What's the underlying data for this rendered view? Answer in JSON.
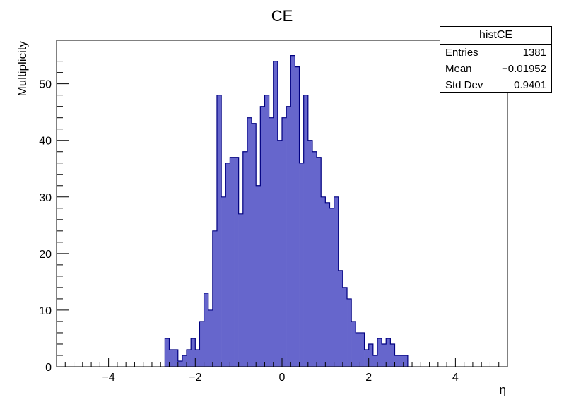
{
  "chart_data": {
    "type": "bar",
    "title": "CE",
    "xlabel": "η",
    "ylabel": "Multiplicity",
    "xlim": [
      -5.2,
      5.2
    ],
    "ylim": [
      0,
      57.7
    ],
    "bin_width": 0.1,
    "bin_low_edges": [
      -2.7,
      -2.6,
      -2.5,
      -2.4,
      -2.3,
      -2.2,
      -2.1,
      -2.0,
      -1.9,
      -1.8,
      -1.7,
      -1.6,
      -1.5,
      -1.4,
      -1.3,
      -1.2,
      -1.1,
      -1.0,
      -0.9,
      -0.8,
      -0.7,
      -0.6,
      -0.5,
      -0.4,
      -0.3,
      -0.2,
      -0.1,
      0.0,
      0.1,
      0.2,
      0.3,
      0.4,
      0.5,
      0.6,
      0.7,
      0.8,
      0.9,
      1.0,
      1.1,
      1.2,
      1.3,
      1.4,
      1.5,
      1.6,
      1.7,
      1.8,
      1.9,
      2.0,
      2.1,
      2.2,
      2.3,
      2.4,
      2.5,
      2.6,
      2.7,
      2.8,
      2.9
    ],
    "values": [
      5,
      3,
      3,
      1,
      2,
      3,
      5,
      3,
      8,
      13,
      10,
      24,
      48,
      30,
      36,
      37,
      37,
      27,
      38,
      44,
      43,
      32,
      46,
      48,
      44,
      54,
      40,
      44,
      46,
      55,
      53,
      36,
      48,
      40,
      38,
      37,
      30,
      29,
      28,
      30,
      17,
      14,
      12,
      8,
      6,
      6,
      3,
      4,
      2,
      5,
      4,
      5,
      4,
      2,
      2,
      2,
      0
    ],
    "x_ticks": [
      "−4",
      "−2",
      "0",
      "2",
      "4"
    ],
    "x_tick_values": [
      -4,
      -2,
      0,
      2,
      4
    ],
    "y_ticks": [
      "0",
      "10",
      "20",
      "30",
      "40",
      "50"
    ],
    "y_tick_values": [
      0,
      10,
      20,
      30,
      40,
      50
    ],
    "grid": false,
    "fill_color": "#6666cc",
    "line_color": "#000080"
  },
  "stats": {
    "name": "histCE",
    "rows": [
      {
        "label": "Entries",
        "value": "1381"
      },
      {
        "label": "Mean",
        "value": "−0.01952"
      },
      {
        "label": "Std Dev",
        "value": "0.9401"
      }
    ]
  }
}
